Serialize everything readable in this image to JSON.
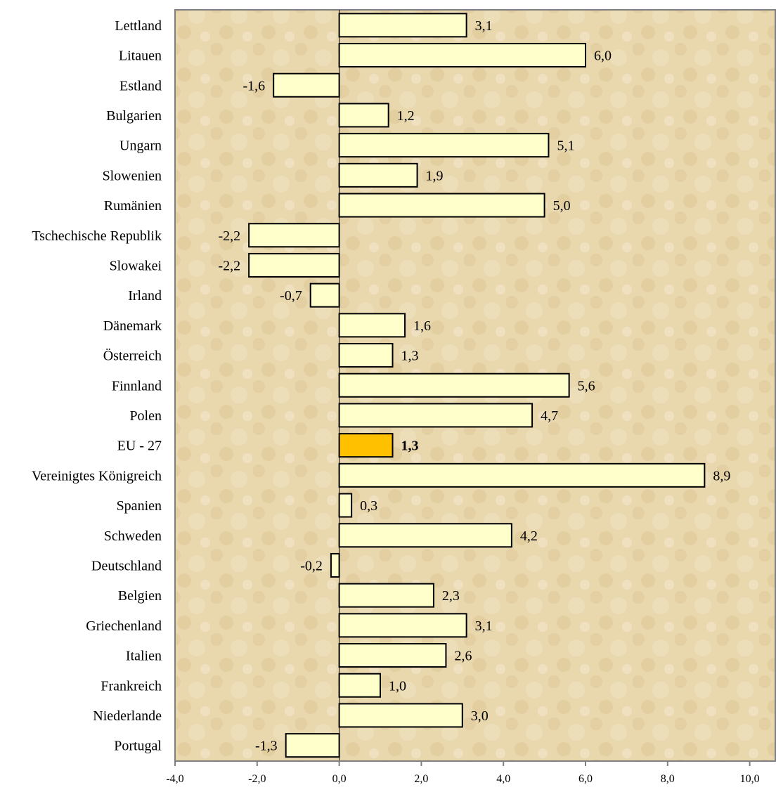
{
  "chart_data": {
    "type": "bar",
    "orientation": "horizontal",
    "title": "",
    "xlabel": "",
    "ylabel": "",
    "xlim": [
      -4,
      10
    ],
    "x_ticks": [
      -4,
      -2,
      0,
      2,
      4,
      6,
      8,
      10
    ],
    "x_tick_labels": [
      "-4,0",
      "-2,0",
      "0,0",
      "2,0",
      "4,0",
      "6,0",
      "8,0",
      "10,0"
    ],
    "grid": false,
    "legend": "none",
    "categories": [
      "Lettland",
      "Litauen",
      "Estland",
      "Bulgarien",
      "Ungarn",
      "Slowenien",
      "Rumänien",
      "Tschechische Republik",
      "Slowakei",
      "Irland",
      "Dänemark",
      "Österreich",
      "Finnland",
      "Polen",
      "EU - 27",
      "Vereinigtes Königreich",
      "Spanien",
      "Schweden",
      "Deutschland",
      "Belgien",
      "Griechenland",
      "Italien",
      "Frankreich",
      "Niederlande",
      "Portugal"
    ],
    "values": [
      3.1,
      6.0,
      -1.6,
      1.2,
      5.1,
      1.9,
      5.0,
      -2.2,
      -2.2,
      -0.7,
      1.6,
      1.3,
      5.6,
      4.7,
      1.3,
      8.9,
      0.3,
      4.2,
      -0.2,
      2.3,
      3.1,
      2.6,
      1.0,
      3.0,
      -1.3
    ],
    "value_labels": [
      "3,1",
      "6,0",
      "-1,6",
      "1,2",
      "5,1",
      "1,9",
      "5,0",
      "-2,2",
      "-2,2",
      "-0,7",
      "1,6",
      "1,3",
      "5,6",
      "4,7",
      "1,3",
      "8,9",
      "0,3",
      "4,2",
      "-0,2",
      "2,3",
      "3,1",
      "2,6",
      "1,0",
      "3,0",
      "-1,3"
    ],
    "highlight_category": "EU - 27",
    "colors": {
      "bar_fill": "#ffffcc",
      "highlight_fill": "#ffc000",
      "bar_stroke": "#000000",
      "plot_background": "#e6d2a8",
      "plot_border": "#808080"
    }
  }
}
